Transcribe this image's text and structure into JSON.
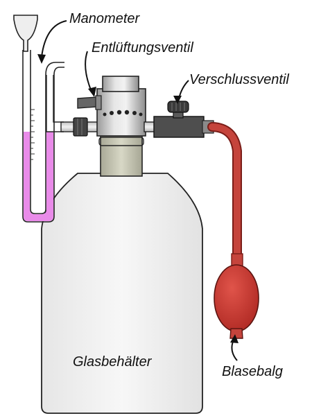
{
  "labels": {
    "manometer": "Manometer",
    "vent_valve": "Entlüftungsventil",
    "shutoff_valve": "Verschlussventil",
    "glass_container": "Glasbehälter",
    "bellows": "Blasebalg"
  },
  "colors": {
    "liquid": "#e98be9",
    "bulb": "#c3332b",
    "hose": "#c5443c",
    "valve_metal": "#c9c9c9",
    "container": "#f2f2f2",
    "neck": "#c8c8b4",
    "dark_part": "#555555"
  }
}
